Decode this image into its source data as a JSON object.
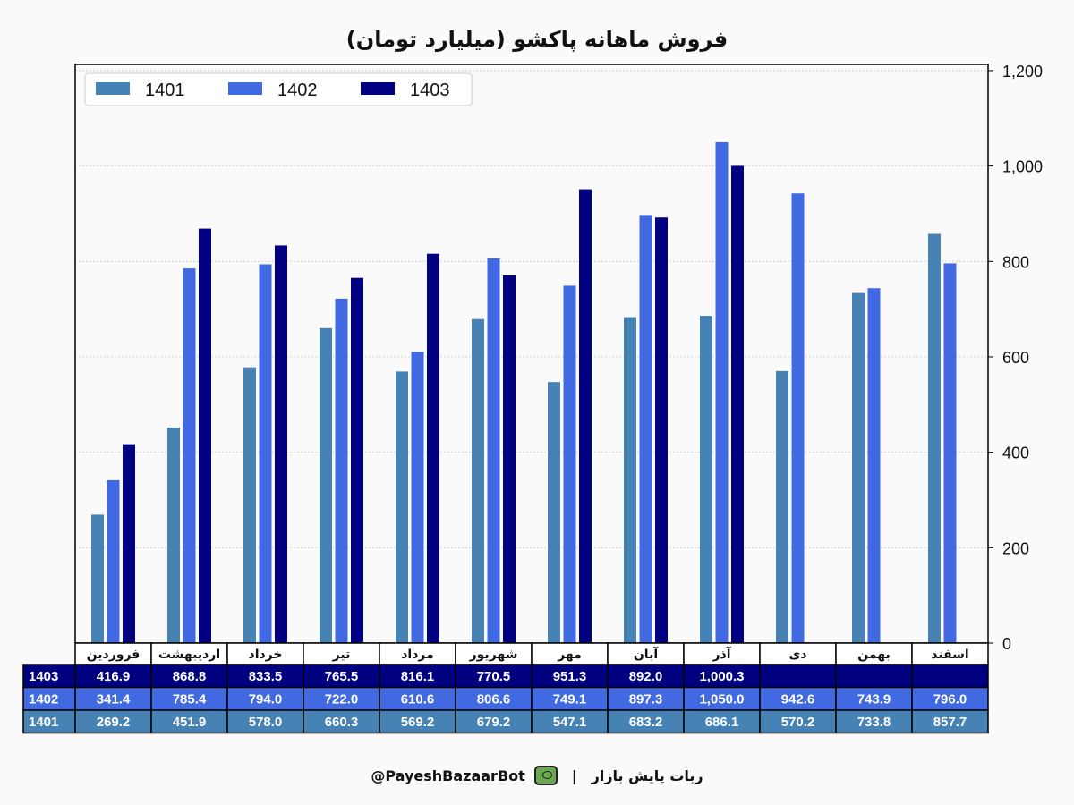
{
  "chart_data": {
    "type": "bar",
    "title": "فروش ماهانه پاکشو (میلیارد تومان)",
    "categories": [
      "فروردین",
      "اردیبهشت",
      "خرداد",
      "تیر",
      "مرداد",
      "شهریور",
      "مهر",
      "آبان",
      "آذر",
      "دی",
      "بهمن",
      "اسفند"
    ],
    "series": [
      {
        "name": "1401",
        "color": "#4682b4",
        "values": [
          269.2,
          451.9,
          578.0,
          660.3,
          569.2,
          679.2,
          547.1,
          683.2,
          686.1,
          570.2,
          733.8,
          857.7
        ]
      },
      {
        "name": "1402",
        "color": "#4169e1",
        "values": [
          341.4,
          785.4,
          794.0,
          722.0,
          610.6,
          806.6,
          749.1,
          897.3,
          1050.0,
          942.6,
          743.9,
          796.0
        ]
      },
      {
        "name": "1403",
        "color": "#000080",
        "values": [
          416.9,
          868.8,
          833.5,
          765.5,
          816.1,
          770.5,
          951.3,
          892.0,
          1000.3,
          null,
          null,
          null
        ]
      }
    ],
    "table_values": {
      "1403": [
        "416.9",
        "868.8",
        "833.5",
        "765.5",
        "816.1",
        "770.5",
        "951.3",
        "892.0",
        "1,000.3",
        "",
        "",
        ""
      ],
      "1402": [
        "341.4",
        "785.4",
        "794.0",
        "722.0",
        "610.6",
        "806.6",
        "749.1",
        "897.3",
        "1,050.0",
        "942.6",
        "743.9",
        "796.0"
      ],
      "1401": [
        "269.2",
        "451.9",
        "578.0",
        "660.3",
        "569.2",
        "679.2",
        "547.1",
        "683.2",
        "686.1",
        "570.2",
        "733.8",
        "857.7"
      ]
    },
    "ylim": [
      0,
      1213
    ],
    "yticks": [
      0,
      200,
      400,
      600,
      800,
      1000,
      1200
    ],
    "ytick_labels": [
      "0",
      "200",
      "400",
      "600",
      "800",
      "1,000",
      "1,200"
    ],
    "y_axis_side": "right",
    "grid": true,
    "legend": "top-left",
    "xlabel": "",
    "ylabel": ""
  },
  "footer": {
    "brand": "ربات پایش بازار",
    "separator": "|",
    "handle": "@PayeshBazaarBot"
  }
}
